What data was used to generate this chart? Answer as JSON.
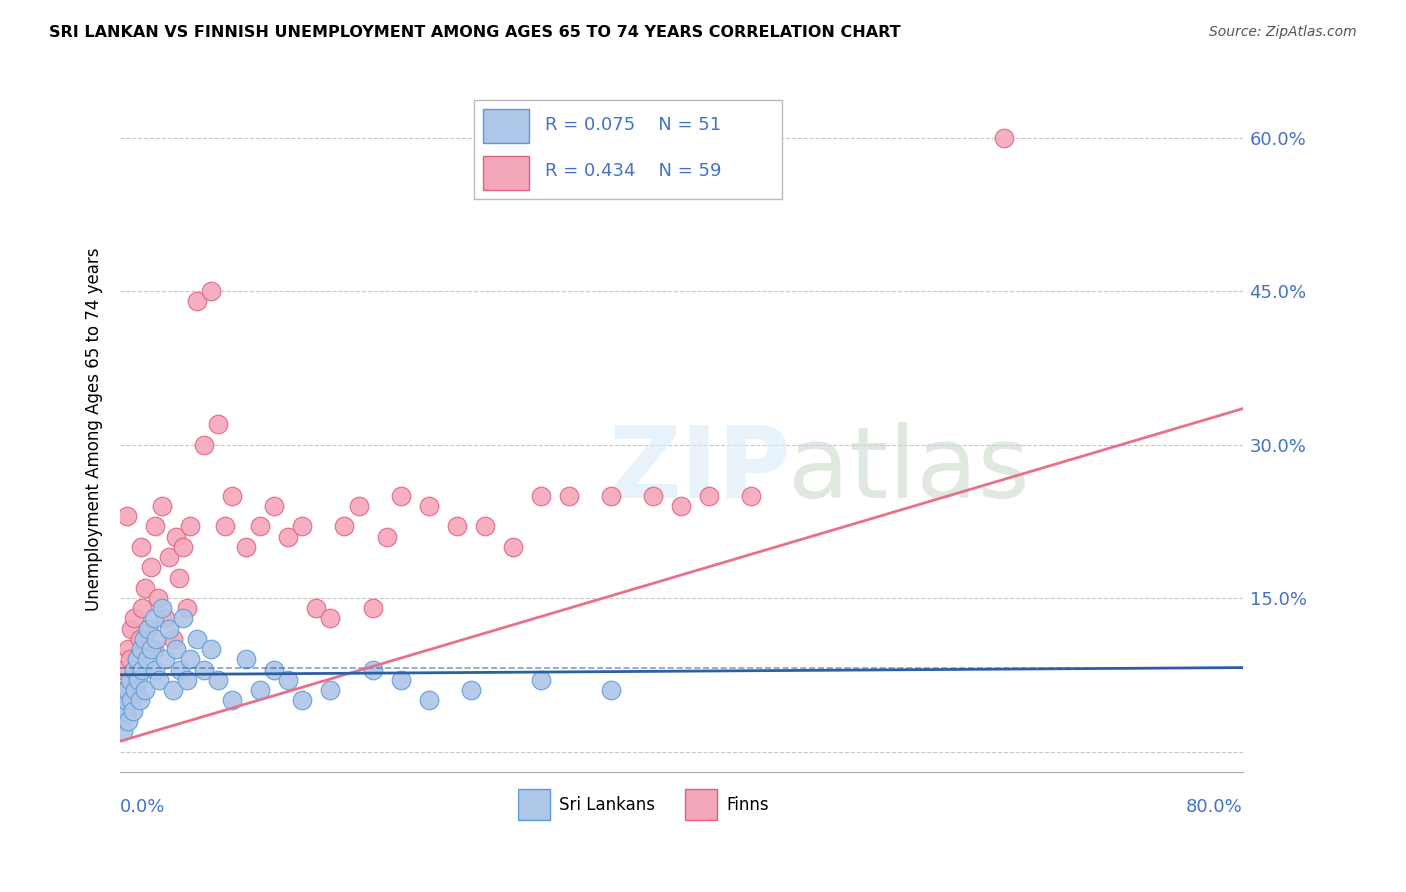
{
  "title": "SRI LANKAN VS FINNISH UNEMPLOYMENT AMONG AGES 65 TO 74 YEARS CORRELATION CHART",
  "source": "Source: ZipAtlas.com",
  "ylabel": "Unemployment Among Ages 65 to 74 years",
  "xlim": [
    0.0,
    0.8
  ],
  "ylim": [
    -0.02,
    0.65
  ],
  "yticks": [
    0.0,
    0.15,
    0.3,
    0.45,
    0.6
  ],
  "ytick_labels": [
    "",
    "15.0%",
    "30.0%",
    "45.0%",
    "60.0%"
  ],
  "sri_lankan_color": "#aec6e8",
  "finn_color": "#f4a7b9",
  "sri_lankan_edge": "#5b9bd5",
  "finn_edge": "#e06080",
  "trend_sri_color": "#2e5fa3",
  "trend_finn_color": "#e8708a",
  "legend_r_sri": "R = 0.075",
  "legend_n_sri": "N = 51",
  "legend_r_finn": "R = 0.434",
  "legend_n_finn": "N = 59",
  "sri_lankans_x": [
    0.001,
    0.002,
    0.003,
    0.004,
    0.005,
    0.006,
    0.007,
    0.008,
    0.009,
    0.01,
    0.011,
    0.012,
    0.013,
    0.014,
    0.015,
    0.016,
    0.017,
    0.018,
    0.019,
    0.02,
    0.022,
    0.024,
    0.025,
    0.026,
    0.028,
    0.03,
    0.032,
    0.035,
    0.038,
    0.04,
    0.043,
    0.045,
    0.048,
    0.05,
    0.055,
    0.06,
    0.065,
    0.07,
    0.08,
    0.09,
    0.1,
    0.11,
    0.12,
    0.13,
    0.15,
    0.18,
    0.2,
    0.22,
    0.25,
    0.3,
    0.35
  ],
  "sri_lankans_y": [
    0.03,
    0.02,
    0.04,
    0.05,
    0.06,
    0.03,
    0.07,
    0.05,
    0.04,
    0.08,
    0.06,
    0.09,
    0.07,
    0.05,
    0.1,
    0.08,
    0.11,
    0.06,
    0.09,
    0.12,
    0.1,
    0.13,
    0.08,
    0.11,
    0.07,
    0.14,
    0.09,
    0.12,
    0.06,
    0.1,
    0.08,
    0.13,
    0.07,
    0.09,
    0.11,
    0.08,
    0.1,
    0.07,
    0.05,
    0.09,
    0.06,
    0.08,
    0.07,
    0.05,
    0.06,
    0.08,
    0.07,
    0.05,
    0.06,
    0.07,
    0.06
  ],
  "finns_x": [
    0.001,
    0.002,
    0.003,
    0.004,
    0.005,
    0.006,
    0.007,
    0.008,
    0.009,
    0.01,
    0.012,
    0.014,
    0.015,
    0.016,
    0.018,
    0.02,
    0.022,
    0.024,
    0.025,
    0.027,
    0.03,
    0.032,
    0.035,
    0.038,
    0.04,
    0.042,
    0.045,
    0.048,
    0.05,
    0.055,
    0.06,
    0.065,
    0.07,
    0.075,
    0.08,
    0.09,
    0.1,
    0.11,
    0.12,
    0.13,
    0.14,
    0.15,
    0.16,
    0.17,
    0.18,
    0.19,
    0.2,
    0.22,
    0.24,
    0.26,
    0.28,
    0.3,
    0.32,
    0.35,
    0.38,
    0.4,
    0.42,
    0.45,
    0.63
  ],
  "finns_y": [
    0.05,
    0.08,
    0.06,
    0.04,
    0.23,
    0.1,
    0.09,
    0.12,
    0.07,
    0.13,
    0.09,
    0.11,
    0.2,
    0.14,
    0.16,
    0.12,
    0.18,
    0.1,
    0.22,
    0.15,
    0.24,
    0.13,
    0.19,
    0.11,
    0.21,
    0.17,
    0.2,
    0.14,
    0.22,
    0.44,
    0.3,
    0.45,
    0.32,
    0.22,
    0.25,
    0.2,
    0.22,
    0.24,
    0.21,
    0.22,
    0.14,
    0.13,
    0.22,
    0.24,
    0.14,
    0.21,
    0.25,
    0.24,
    0.22,
    0.22,
    0.2,
    0.25,
    0.25,
    0.25,
    0.25,
    0.24,
    0.25,
    0.25,
    0.6
  ],
  "trend_sri_start_y": 0.075,
  "trend_sri_end_y": 0.082,
  "trend_sri_dashed_y": 0.082,
  "trend_finn_start_y": 0.01,
  "trend_finn_end_y": 0.335
}
